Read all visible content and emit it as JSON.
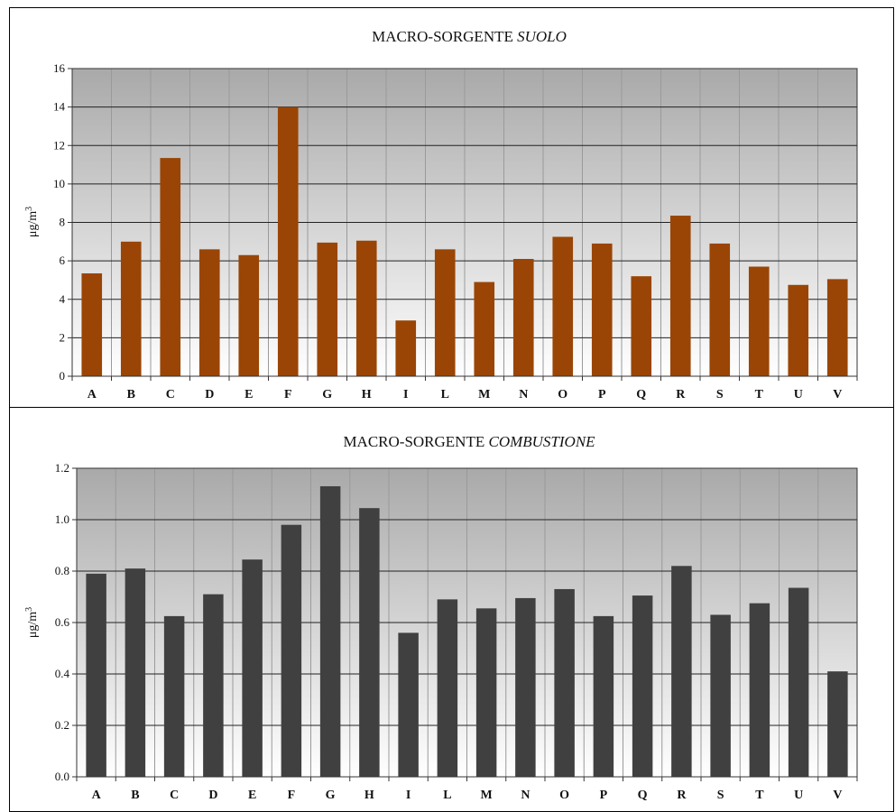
{
  "chart_data": [
    {
      "type": "bar",
      "title_prefix": "MACRO-SORGENTE ",
      "title_italic": "SUOLO",
      "ylabel": "μg/m",
      "ylabel_sup": "3",
      "ylim": [
        0,
        16
      ],
      "yticks": [
        "0",
        "2",
        "4",
        "6",
        "8",
        "10",
        "12",
        "14",
        "16"
      ],
      "grid": true,
      "bar_color": "#9a4505",
      "categories": [
        "A",
        "B",
        "C",
        "D",
        "E",
        "F",
        "G",
        "H",
        "I",
        "L",
        "M",
        "N",
        "O",
        "P",
        "Q",
        "R",
        "S",
        "T",
        "U",
        "V"
      ],
      "values": [
        5.35,
        7.0,
        11.35,
        6.6,
        6.3,
        14.0,
        6.95,
        7.05,
        2.9,
        6.6,
        4.9,
        6.1,
        7.25,
        6.9,
        5.2,
        8.35,
        6.9,
        5.7,
        4.75,
        5.05
      ]
    },
    {
      "type": "bar",
      "title_prefix": "MACRO-SORGENTE ",
      "title_italic": "COMBUSTIONE",
      "ylabel": "μg/m",
      "ylabel_sup": "3",
      "ylim": [
        0,
        1.2
      ],
      "yticks": [
        "0.0",
        "0.2",
        "0.4",
        "0.6",
        "0.8",
        "1.0",
        "1.2"
      ],
      "grid": true,
      "bar_color": "#404040",
      "categories": [
        "A",
        "B",
        "C",
        "D",
        "E",
        "F",
        "G",
        "H",
        "I",
        "L",
        "M",
        "N",
        "O",
        "P",
        "Q",
        "R",
        "S",
        "T",
        "U",
        "V"
      ],
      "values": [
        0.79,
        0.81,
        0.625,
        0.71,
        0.845,
        0.98,
        1.13,
        1.045,
        0.56,
        0.69,
        0.655,
        0.695,
        0.73,
        0.625,
        0.705,
        0.82,
        0.63,
        0.675,
        0.735,
        0.41
      ]
    }
  ]
}
